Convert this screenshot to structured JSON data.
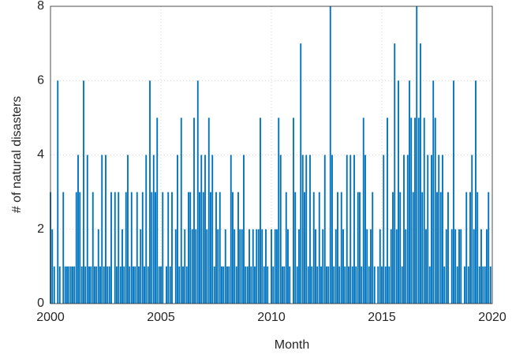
{
  "chart_data": {
    "type": "bar",
    "xlabel": "Month",
    "ylabel": "# of natural disasters",
    "color": "#0072bd",
    "grid": true,
    "xlim": [
      2000,
      2020
    ],
    "xticks": [
      2000,
      2005,
      2010,
      2015,
      2020
    ],
    "ylim": [
      0,
      8
    ],
    "yticks": [
      0,
      2,
      4,
      6,
      8
    ],
    "x": [
      2000,
      2000.08,
      2000.17,
      2000.25,
      2000.33,
      2000.42,
      2000.5,
      2000.58,
      2000.67,
      2000.75,
      2000.83,
      2000.92,
      2001,
      2001.08,
      2001.17,
      2001.25,
      2001.33,
      2001.42,
      2001.5,
      2001.58,
      2001.67,
      2001.75,
      2001.83,
      2001.92,
      2002,
      2002.08,
      2002.17,
      2002.25,
      2002.33,
      2002.42,
      2002.5,
      2002.58,
      2002.67,
      2002.75,
      2002.83,
      2002.92,
      2003,
      2003.08,
      2003.17,
      2003.25,
      2003.33,
      2003.42,
      2003.5,
      2003.58,
      2003.67,
      2003.75,
      2003.83,
      2003.92,
      2004,
      2004.08,
      2004.17,
      2004.25,
      2004.33,
      2004.42,
      2004.5,
      2004.58,
      2004.67,
      2004.75,
      2004.83,
      2004.92,
      2005,
      2005.08,
      2005.17,
      2005.25,
      2005.33,
      2005.42,
      2005.5,
      2005.58,
      2005.67,
      2005.75,
      2005.83,
      2005.92,
      2006,
      2006.08,
      2006.17,
      2006.25,
      2006.33,
      2006.42,
      2006.5,
      2006.58,
      2006.67,
      2006.75,
      2006.83,
      2006.92,
      2007,
      2007.08,
      2007.17,
      2007.25,
      2007.33,
      2007.42,
      2007.5,
      2007.58,
      2007.67,
      2007.75,
      2007.83,
      2007.92,
      2008,
      2008.08,
      2008.17,
      2008.25,
      2008.33,
      2008.42,
      2008.5,
      2008.58,
      2008.67,
      2008.75,
      2008.83,
      2008.92,
      2009,
      2009.08,
      2009.17,
      2009.25,
      2009.33,
      2009.42,
      2009.5,
      2009.58,
      2009.67,
      2009.75,
      2009.83,
      2009.92,
      2010,
      2010.08,
      2010.17,
      2010.25,
      2010.33,
      2010.42,
      2010.5,
      2010.58,
      2010.67,
      2010.75,
      2010.83,
      2010.92,
      2011,
      2011.08,
      2011.17,
      2011.25,
      2011.33,
      2011.42,
      2011.5,
      2011.58,
      2011.67,
      2011.75,
      2011.83,
      2011.92,
      2012,
      2012.08,
      2012.17,
      2012.25,
      2012.33,
      2012.42,
      2012.5,
      2012.58,
      2012.67,
      2012.75,
      2012.83,
      2012.92,
      2013,
      2013.08,
      2013.17,
      2013.25,
      2013.33,
      2013.42,
      2013.5,
      2013.58,
      2013.67,
      2013.75,
      2013.83,
      2013.92,
      2014,
      2014.08,
      2014.17,
      2014.25,
      2014.33,
      2014.42,
      2014.5,
      2014.58,
      2014.67,
      2014.75,
      2014.83,
      2014.92,
      2015,
      2015.08,
      2015.17,
      2015.25,
      2015.33,
      2015.42,
      2015.5,
      2015.58,
      2015.67,
      2015.75,
      2015.83,
      2015.92,
      2016,
      2016.08,
      2016.17,
      2016.25,
      2016.33,
      2016.42,
      2016.5,
      2016.58,
      2016.67,
      2016.75,
      2016.83,
      2016.92,
      2017,
      2017.08,
      2017.17,
      2017.25,
      2017.33,
      2017.42,
      2017.5,
      2017.58,
      2017.67,
      2017.75,
      2017.83,
      2017.92,
      2018,
      2018.08,
      2018.17,
      2018.25,
      2018.33,
      2018.42,
      2018.5,
      2018.58,
      2018.67,
      2018.75,
      2018.83,
      2018.92,
      2019,
      2019.08,
      2019.17,
      2019.25,
      2019.33,
      2019.42,
      2019.5,
      2019.58,
      2019.67,
      2019.75,
      2019.83,
      2019.92
    ],
    "values": [
      3,
      2,
      1,
      0,
      6,
      1,
      0,
      3,
      1,
      1,
      1,
      1,
      1,
      1,
      3,
      4,
      3,
      1,
      6,
      1,
      4,
      1,
      1,
      3,
      1,
      1,
      2,
      1,
      4,
      1,
      4,
      1,
      1,
      3,
      0,
      3,
      1,
      3,
      1,
      2,
      1,
      3,
      4,
      1,
      3,
      1,
      1,
      3,
      1,
      2,
      3,
      1,
      4,
      1,
      6,
      3,
      4,
      3,
      5,
      1,
      1,
      3,
      0,
      1,
      3,
      1,
      3,
      0,
      2,
      4,
      1,
      5,
      1,
      2,
      1,
      3,
      3,
      2,
      5,
      2,
      6,
      3,
      4,
      3,
      4,
      2,
      5,
      3,
      4,
      1,
      3,
      2,
      3,
      1,
      1,
      2,
      1,
      1,
      4,
      3,
      2,
      1,
      3,
      2,
      2,
      4,
      1,
      1,
      2,
      1,
      2,
      1,
      2,
      2,
      5,
      2,
      1,
      2,
      1,
      0,
      2,
      1,
      2,
      2,
      5,
      4,
      1,
      1,
      3,
      2,
      1,
      0,
      5,
      3,
      1,
      2,
      7,
      4,
      3,
      4,
      1,
      4,
      1,
      3,
      2,
      1,
      3,
      1,
      2,
      4,
      1,
      1,
      8,
      4,
      1,
      2,
      3,
      1,
      3,
      2,
      1,
      4,
      1,
      4,
      1,
      4,
      1,
      3,
      3,
      1,
      5,
      4,
      2,
      1,
      2,
      3,
      1,
      0,
      1,
      2,
      1,
      4,
      1,
      5,
      1,
      2,
      3,
      7,
      2,
      6,
      3,
      1,
      4,
      2,
      4,
      6,
      5,
      3,
      5,
      8,
      5,
      7,
      3,
      5,
      2,
      4,
      1,
      4,
      6,
      5,
      3,
      4,
      3,
      4,
      1,
      2,
      3,
      0,
      2,
      6,
      2,
      1,
      2,
      2,
      0,
      1,
      3,
      1,
      3,
      4,
      2,
      6,
      3,
      1,
      2,
      1,
      1,
      2,
      3,
      1
    ]
  }
}
